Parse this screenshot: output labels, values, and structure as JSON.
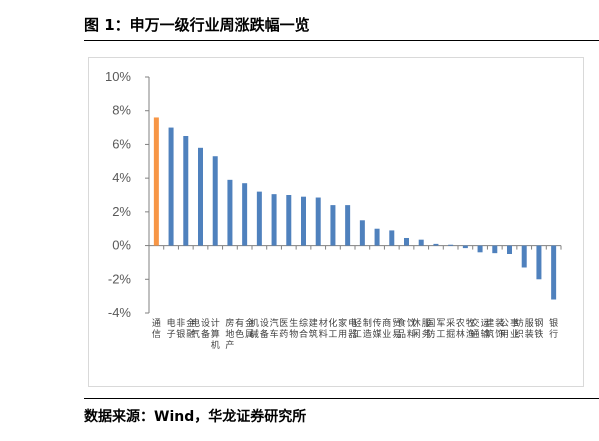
{
  "header": {
    "title": "图 1：申万一级行业周涨跌幅一览"
  },
  "footer": {
    "source": "数据来源：Wind，华龙证券研究所"
  },
  "colors": {
    "bar": "#4f81bd",
    "highlight": "#f79646",
    "axis": "#808080"
  },
  "chart_data": {
    "type": "bar",
    "title": "",
    "xlabel": "",
    "ylabel": "",
    "ylim": [
      -4,
      10
    ],
    "yticks": [
      "-4%",
      "-2%",
      "0%",
      "2%",
      "4%",
      "6%",
      "8%",
      "10%"
    ],
    "grid": false,
    "categories": [
      "通信",
      "电子",
      "非银金融",
      "电气设备",
      "计算机",
      "房地产",
      "有色金属",
      "机械设备",
      "汽车",
      "医药生物",
      "综合",
      "建筑材料",
      "化工",
      "家用电器",
      "轻工制造",
      "传媒",
      "商业贸易",
      "食品饮料",
      "休闲服务",
      "国防军工",
      "采掘",
      "农林牧渔",
      "交通运输",
      "建筑装饰",
      "公用事业",
      "纺织服装",
      "钢铁",
      "银行"
    ],
    "values": [
      7.6,
      7.0,
      6.5,
      5.8,
      5.3,
      3.9,
      3.7,
      3.2,
      3.05,
      3.0,
      2.9,
      2.85,
      2.4,
      2.4,
      1.5,
      1.0,
      0.9,
      0.45,
      0.35,
      0.1,
      0.05,
      -0.15,
      -0.4,
      -0.45,
      -0.5,
      -1.3,
      -2.0,
      -3.2
    ],
    "highlight_index": 0
  }
}
